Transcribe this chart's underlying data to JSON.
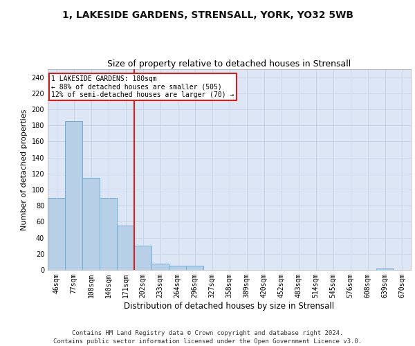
{
  "title1": "1, LAKESIDE GARDENS, STRENSALL, YORK, YO32 5WB",
  "title2": "Size of property relative to detached houses in Strensall",
  "xlabel": "Distribution of detached houses by size in Strensall",
  "ylabel": "Number of detached properties",
  "categories": [
    "46sqm",
    "77sqm",
    "108sqm",
    "140sqm",
    "171sqm",
    "202sqm",
    "233sqm",
    "264sqm",
    "296sqm",
    "327sqm",
    "358sqm",
    "389sqm",
    "420sqm",
    "452sqm",
    "483sqm",
    "514sqm",
    "545sqm",
    "576sqm",
    "608sqm",
    "639sqm",
    "670sqm"
  ],
  "values": [
    90,
    185,
    115,
    90,
    55,
    30,
    8,
    5,
    5,
    0,
    0,
    0,
    0,
    0,
    0,
    0,
    0,
    0,
    0,
    2,
    0
  ],
  "bar_color": "#b8cfe8",
  "bar_edge_color": "#6baed6",
  "red_line_index": 4,
  "red_line_color": "#cc2222",
  "annotation_text": "1 LAKESIDE GARDENS: 180sqm\n← 88% of detached houses are smaller (505)\n12% of semi-detached houses are larger (70) →",
  "annotation_box_color": "#cc2222",
  "ylim": [
    0,
    250
  ],
  "yticks": [
    0,
    20,
    40,
    60,
    80,
    100,
    120,
    140,
    160,
    180,
    200,
    220,
    240
  ],
  "grid_color": "#c8d4e8",
  "background_color": "#dce6f5",
  "footer_text": "Contains HM Land Registry data © Crown copyright and database right 2024.\nContains public sector information licensed under the Open Government Licence v3.0.",
  "title1_fontsize": 10,
  "title2_fontsize": 9,
  "xlabel_fontsize": 8.5,
  "ylabel_fontsize": 8,
  "tick_fontsize": 7,
  "footer_fontsize": 6.5
}
